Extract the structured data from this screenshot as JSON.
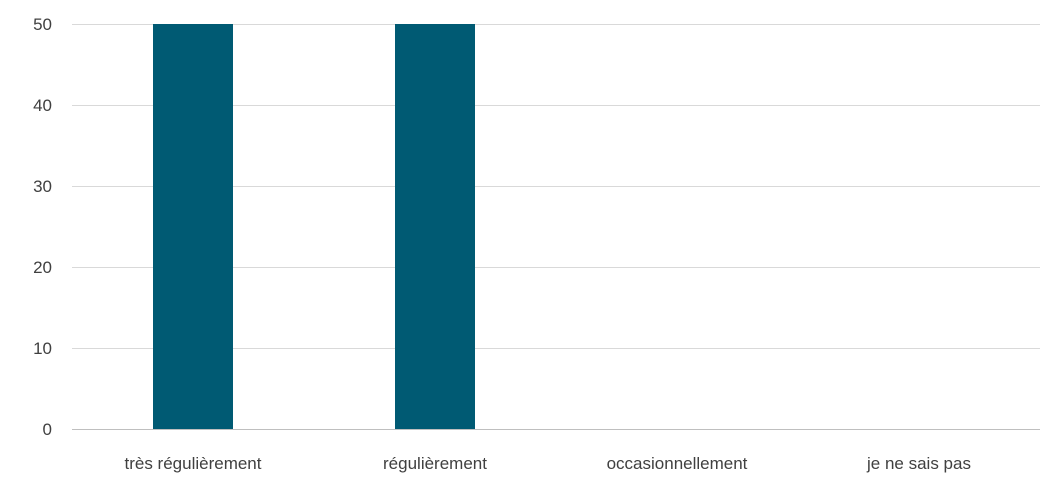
{
  "chart_data": {
    "type": "bar",
    "title": "",
    "xlabel": "",
    "ylabel": "",
    "categories": [
      "très régulièrement",
      "régulièrement",
      "occasionnellement",
      "je ne sais pas"
    ],
    "series": [
      {
        "values": [
          50,
          50,
          0,
          0
        ],
        "color": "#005a73"
      }
    ],
    "ylim": [
      0,
      50
    ],
    "yticks": [
      0,
      10,
      20,
      30,
      40,
      50
    ],
    "grid": true,
    "legend": "none"
  }
}
